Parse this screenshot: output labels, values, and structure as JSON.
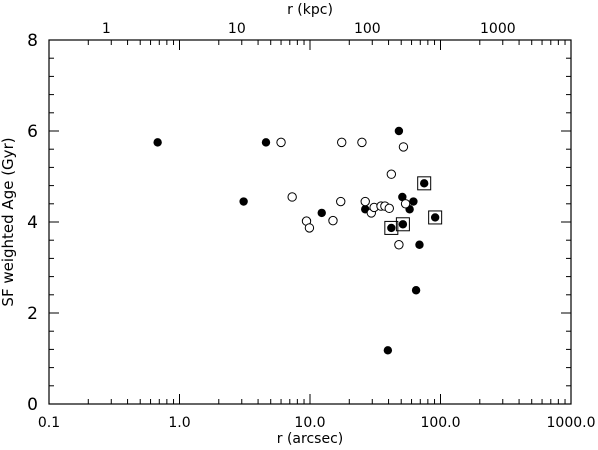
{
  "chart_data": {
    "type": "scatter",
    "xlabel": "r (arcsec)",
    "x2label": "r (kpc)",
    "ylabel": "SF weighted Age (Gyr)",
    "xscale": "log",
    "xlim": [
      0.1,
      1000
    ],
    "ylim": [
      0,
      8
    ],
    "grid": false,
    "x_ticks": [
      "0.1",
      "1.0",
      "10.0",
      "100.0",
      "1000.0"
    ],
    "x2_ticks": [
      "1",
      "10",
      "100",
      "1000"
    ],
    "x2_tick_arcsec": [
      0.275,
      2.75,
      27.5,
      275
    ],
    "y_ticks": [
      "0",
      "2",
      "4",
      "6",
      "8"
    ],
    "series": [
      {
        "marker": "filled-circle",
        "points": [
          {
            "x": 0.68,
            "y": 5.75
          },
          {
            "x": 3.1,
            "y": 4.45
          },
          {
            "x": 4.6,
            "y": 5.75
          },
          {
            "x": 12.3,
            "y": 4.2
          },
          {
            "x": 26.5,
            "y": 4.28
          },
          {
            "x": 39.5,
            "y": 1.18
          },
          {
            "x": 48.0,
            "y": 6.0
          },
          {
            "x": 51.0,
            "y": 4.55
          },
          {
            "x": 58.0,
            "y": 4.28
          },
          {
            "x": 62.0,
            "y": 4.45
          },
          {
            "x": 65.0,
            "y": 2.5
          },
          {
            "x": 69.0,
            "y": 3.5
          }
        ]
      },
      {
        "marker": "open-circle",
        "points": [
          {
            "x": 6.0,
            "y": 5.75
          },
          {
            "x": 7.3,
            "y": 4.55
          },
          {
            "x": 9.4,
            "y": 4.02
          },
          {
            "x": 9.9,
            "y": 3.87
          },
          {
            "x": 15.0,
            "y": 4.03
          },
          {
            "x": 17.2,
            "y": 4.45
          },
          {
            "x": 17.5,
            "y": 5.75
          },
          {
            "x": 25.0,
            "y": 5.75
          },
          {
            "x": 26.5,
            "y": 4.45
          },
          {
            "x": 29.5,
            "y": 4.2
          },
          {
            "x": 31.0,
            "y": 4.32
          },
          {
            "x": 35.0,
            "y": 4.35
          },
          {
            "x": 37.5,
            "y": 4.35
          },
          {
            "x": 40.5,
            "y": 4.3
          },
          {
            "x": 42.0,
            "y": 5.05
          },
          {
            "x": 48.0,
            "y": 3.5
          },
          {
            "x": 52.0,
            "y": 5.65
          },
          {
            "x": 54.0,
            "y": 4.4
          }
        ]
      },
      {
        "marker": "filled-circle-in-square",
        "points": [
          {
            "x": 42.0,
            "y": 3.87
          },
          {
            "x": 51.5,
            "y": 3.95
          },
          {
            "x": 75.0,
            "y": 4.85
          },
          {
            "x": 91.0,
            "y": 4.1
          }
        ]
      }
    ]
  }
}
